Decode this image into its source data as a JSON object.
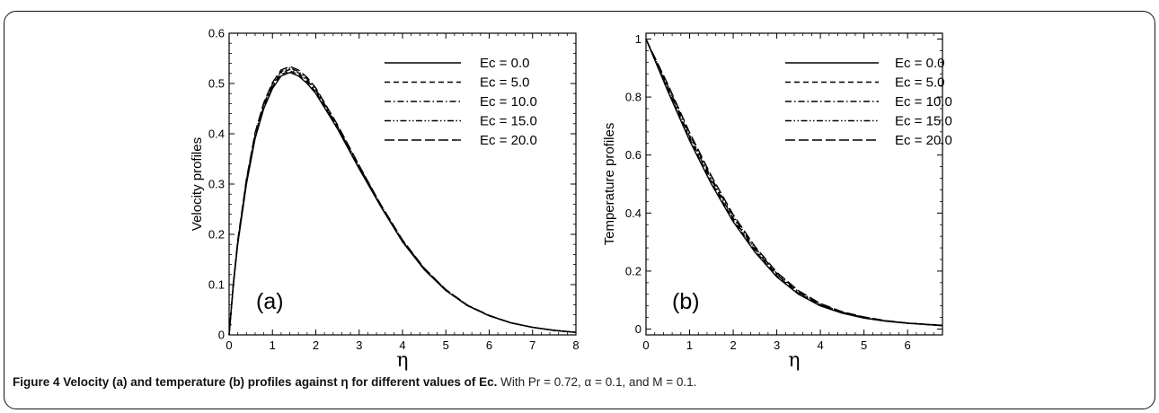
{
  "figure": {
    "caption_lead": "Figure 4 Velocity (a) and temperature (b) profiles against η for different values of Ec.",
    "caption_rest": " With Pr = 0.72, α = 0.1, and M = 0.1."
  },
  "chart_data": [
    {
      "type": "line",
      "panel_label": "(a)",
      "xlabel": "η",
      "ylabel": "Velocity profiles",
      "xlim": [
        0,
        8
      ],
      "ylim": [
        0,
        0.6
      ],
      "xticks": [
        "0",
        "1",
        "2",
        "3",
        "4",
        "5",
        "6",
        "7",
        "8"
      ],
      "yticks": [
        "0",
        "0.1",
        "0.2",
        "0.3",
        "0.4",
        "0.5",
        "0.6"
      ],
      "legend_position": "top-right",
      "x": [
        0,
        0.1,
        0.2,
        0.4,
        0.6,
        0.8,
        1.0,
        1.2,
        1.4,
        1.6,
        1.8,
        2.0,
        2.5,
        3.0,
        3.5,
        4.0,
        4.5,
        5.0,
        5.5,
        6.0,
        6.5,
        7.0,
        7.5,
        8.0
      ],
      "series": [
        {
          "name": "Ec = 0.0",
          "style": "solid",
          "values": [
            0,
            0.1,
            0.18,
            0.3,
            0.39,
            0.45,
            0.49,
            0.515,
            0.522,
            0.515,
            0.5,
            0.48,
            0.41,
            0.33,
            0.255,
            0.185,
            0.13,
            0.088,
            0.058,
            0.038,
            0.024,
            0.015,
            0.009,
            0.005
          ]
        },
        {
          "name": "Ec = 5.0",
          "style": "dash",
          "values": [
            0,
            0.101,
            0.182,
            0.302,
            0.393,
            0.453,
            0.493,
            0.518,
            0.525,
            0.518,
            0.503,
            0.483,
            0.412,
            0.332,
            0.256,
            0.186,
            0.131,
            0.089,
            0.058,
            0.038,
            0.024,
            0.015,
            0.009,
            0.005
          ]
        },
        {
          "name": "Ec = 10.0",
          "style": "dashdot",
          "values": [
            0,
            0.102,
            0.184,
            0.305,
            0.396,
            0.456,
            0.496,
            0.521,
            0.528,
            0.521,
            0.506,
            0.486,
            0.414,
            0.334,
            0.257,
            0.187,
            0.131,
            0.089,
            0.059,
            0.038,
            0.024,
            0.015,
            0.009,
            0.005
          ]
        },
        {
          "name": "Ec = 15.0",
          "style": "dashdotdot",
          "values": [
            0,
            0.103,
            0.186,
            0.307,
            0.399,
            0.459,
            0.499,
            0.524,
            0.531,
            0.524,
            0.509,
            0.488,
            0.416,
            0.335,
            0.258,
            0.188,
            0.132,
            0.09,
            0.059,
            0.038,
            0.024,
            0.015,
            0.009,
            0.005
          ]
        },
        {
          "name": "Ec = 20.0",
          "style": "longdash",
          "values": [
            0,
            0.104,
            0.188,
            0.31,
            0.402,
            0.462,
            0.502,
            0.527,
            0.534,
            0.527,
            0.512,
            0.491,
            0.418,
            0.337,
            0.259,
            0.189,
            0.133,
            0.09,
            0.059,
            0.039,
            0.024,
            0.015,
            0.009,
            0.005
          ]
        }
      ]
    },
    {
      "type": "line",
      "panel_label": "(b)",
      "xlabel": "η",
      "ylabel": "Temperature profiles",
      "xlim": [
        0,
        6.8
      ],
      "ylim": [
        -0.02,
        1.02
      ],
      "xticks": [
        "0",
        "1",
        "2",
        "3",
        "4",
        "5",
        "6"
      ],
      "yticks": [
        "0",
        "0.2",
        "0.4",
        "0.6",
        "0.8",
        "1"
      ],
      "legend_position": "top-right",
      "x": [
        0,
        0.5,
        1.0,
        1.5,
        2.0,
        2.5,
        3.0,
        3.5,
        4.0,
        4.5,
        5.0,
        5.5,
        6.0,
        6.5,
        6.8
      ],
      "series": [
        {
          "name": "Ec = 0.0",
          "style": "solid",
          "values": [
            1,
            0.82,
            0.65,
            0.5,
            0.37,
            0.265,
            0.18,
            0.12,
            0.08,
            0.055,
            0.038,
            0.027,
            0.02,
            0.015,
            0.012
          ]
        },
        {
          "name": "Ec = 5.0",
          "style": "dash",
          "values": [
            1,
            0.826,
            0.657,
            0.507,
            0.376,
            0.27,
            0.184,
            0.123,
            0.082,
            0.056,
            0.039,
            0.028,
            0.02,
            0.015,
            0.012
          ]
        },
        {
          "name": "Ec = 10.0",
          "style": "dashdot",
          "values": [
            1,
            0.832,
            0.664,
            0.514,
            0.382,
            0.275,
            0.188,
            0.126,
            0.084,
            0.057,
            0.04,
            0.028,
            0.021,
            0.015,
            0.012
          ]
        },
        {
          "name": "Ec = 15.0",
          "style": "dashdotdot",
          "values": [
            1,
            0.838,
            0.671,
            0.521,
            0.388,
            0.28,
            0.192,
            0.129,
            0.086,
            0.058,
            0.041,
            0.029,
            0.021,
            0.016,
            0.013
          ]
        },
        {
          "name": "Ec = 20.0",
          "style": "longdash",
          "values": [
            1,
            0.844,
            0.678,
            0.528,
            0.394,
            0.285,
            0.196,
            0.132,
            0.088,
            0.06,
            0.042,
            0.029,
            0.021,
            0.016,
            0.013
          ]
        }
      ]
    }
  ]
}
